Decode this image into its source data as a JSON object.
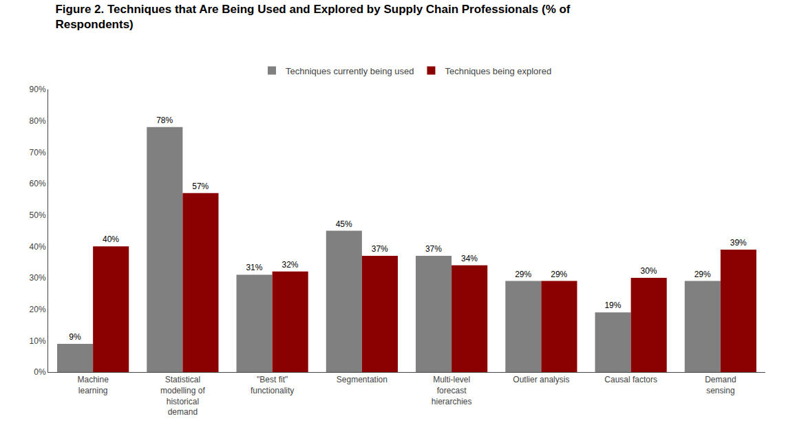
{
  "chart_data": {
    "type": "bar",
    "title": "Figure 2. Techniques that Are Being Used and Explored by Supply Chain Professionals (% of\nRespondents)",
    "categories": [
      "Machine\nlearning",
      "Statistical\nmodelling of\nhistorical\ndemand",
      "\"Best fit\"\nfunctionality",
      "Segmentation",
      "Multi-level\nforecast\nhierarchies",
      "Outlier analysis",
      "Causal factors",
      "Demand\nsensing"
    ],
    "series": [
      {
        "name": "Techniques currently being used",
        "color": "#808080",
        "values": [
          9,
          78,
          31,
          45,
          37,
          29,
          19,
          29
        ],
        "value_labels": [
          "9%",
          "78%",
          "31%",
          "45%",
          "37%",
          "29%",
          "19%",
          "29%"
        ]
      },
      {
        "name": "Techniques being explored",
        "color": "#8B0000",
        "values": [
          40,
          57,
          32,
          37,
          34,
          29,
          30,
          39
        ],
        "value_labels": [
          "40%",
          "57%",
          "32%",
          "37%",
          "34%",
          "29%",
          "30%",
          "39%"
        ]
      }
    ],
    "ylim": [
      0,
      90
    ],
    "yticks": [
      {
        "value": 0,
        "label": "0%"
      },
      {
        "value": 10,
        "label": "10%"
      },
      {
        "value": 20,
        "label": "20%"
      },
      {
        "value": 30,
        "label": "30%"
      },
      {
        "value": 40,
        "label": "40%"
      },
      {
        "value": 50,
        "label": "50%"
      },
      {
        "value": 60,
        "label": "60%"
      },
      {
        "value": 70,
        "label": "70%"
      },
      {
        "value": 80,
        "label": "80%"
      },
      {
        "value": 90,
        "label": "90%"
      }
    ],
    "grid": false,
    "legend": "top",
    "data_labels": true
  }
}
